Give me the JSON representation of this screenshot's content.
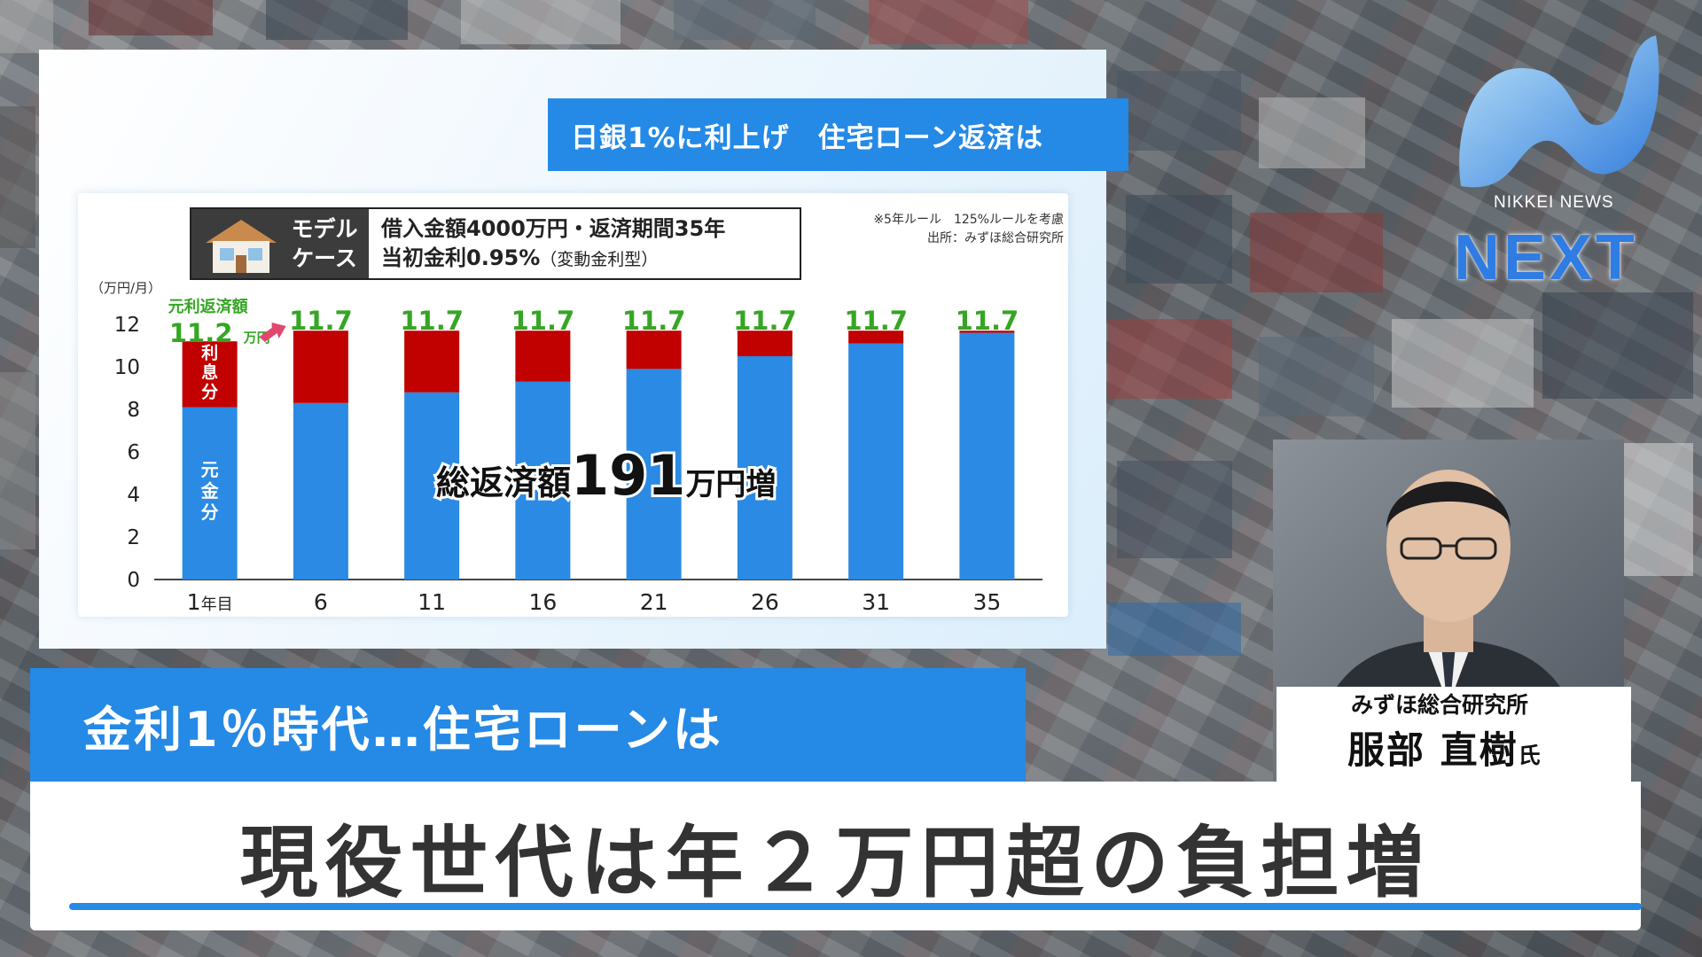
{
  "chart_header": "日銀1%に利上げ　住宅ローン返済は",
  "model_case": {
    "label": "モデル ケース",
    "line1": "借入金額4000万円・返済期間35年",
    "line2": "当初金利0.95%",
    "line2_sub": "（変動金利型）",
    "icon": "house-icon"
  },
  "notes": {
    "rule": "※5年ルール　125%ルールを考慮",
    "source": "出所：みずほ総合研究所"
  },
  "chart_data": {
    "type": "bar",
    "stacked": true,
    "unit_label": "（万円/月）",
    "categories": [
      "1年目",
      "6",
      "11",
      "16",
      "21",
      "26",
      "31",
      "35"
    ],
    "series": [
      {
        "name": "元金分",
        "color": "#2b8ae3",
        "values": [
          8.1,
          8.3,
          8.8,
          9.3,
          9.9,
          10.5,
          11.1,
          11.6
        ]
      },
      {
        "name": "利息分",
        "color": "#c10000",
        "values": [
          3.1,
          3.4,
          2.9,
          2.4,
          1.8,
          1.2,
          0.6,
          0.1
        ]
      }
    ],
    "totals": [
      "11.2",
      "11.7",
      "11.7",
      "11.7",
      "11.7",
      "11.7",
      "11.7",
      "11.7"
    ],
    "first_total_caption": "元利返済額",
    "first_total_unit": "万円",
    "yticks": [
      "0",
      "2",
      "4",
      "6",
      "8",
      "10",
      "12"
    ],
    "ylim": [
      0,
      13
    ],
    "annotation_prefix": "総返済額",
    "annotation_value": "191",
    "annotation_suffix": "万円増",
    "label_color": "#35a624"
  },
  "headline_top": "金利1％時代…住宅ローンは",
  "headline_main": "現役世代は年２万円超の負担増",
  "guest": {
    "org": "みずほ総合研究所",
    "name": "服部 直樹",
    "suffix": "氏"
  },
  "logo": {
    "small": "NIKKEI NEWS",
    "big": "NEXT"
  }
}
